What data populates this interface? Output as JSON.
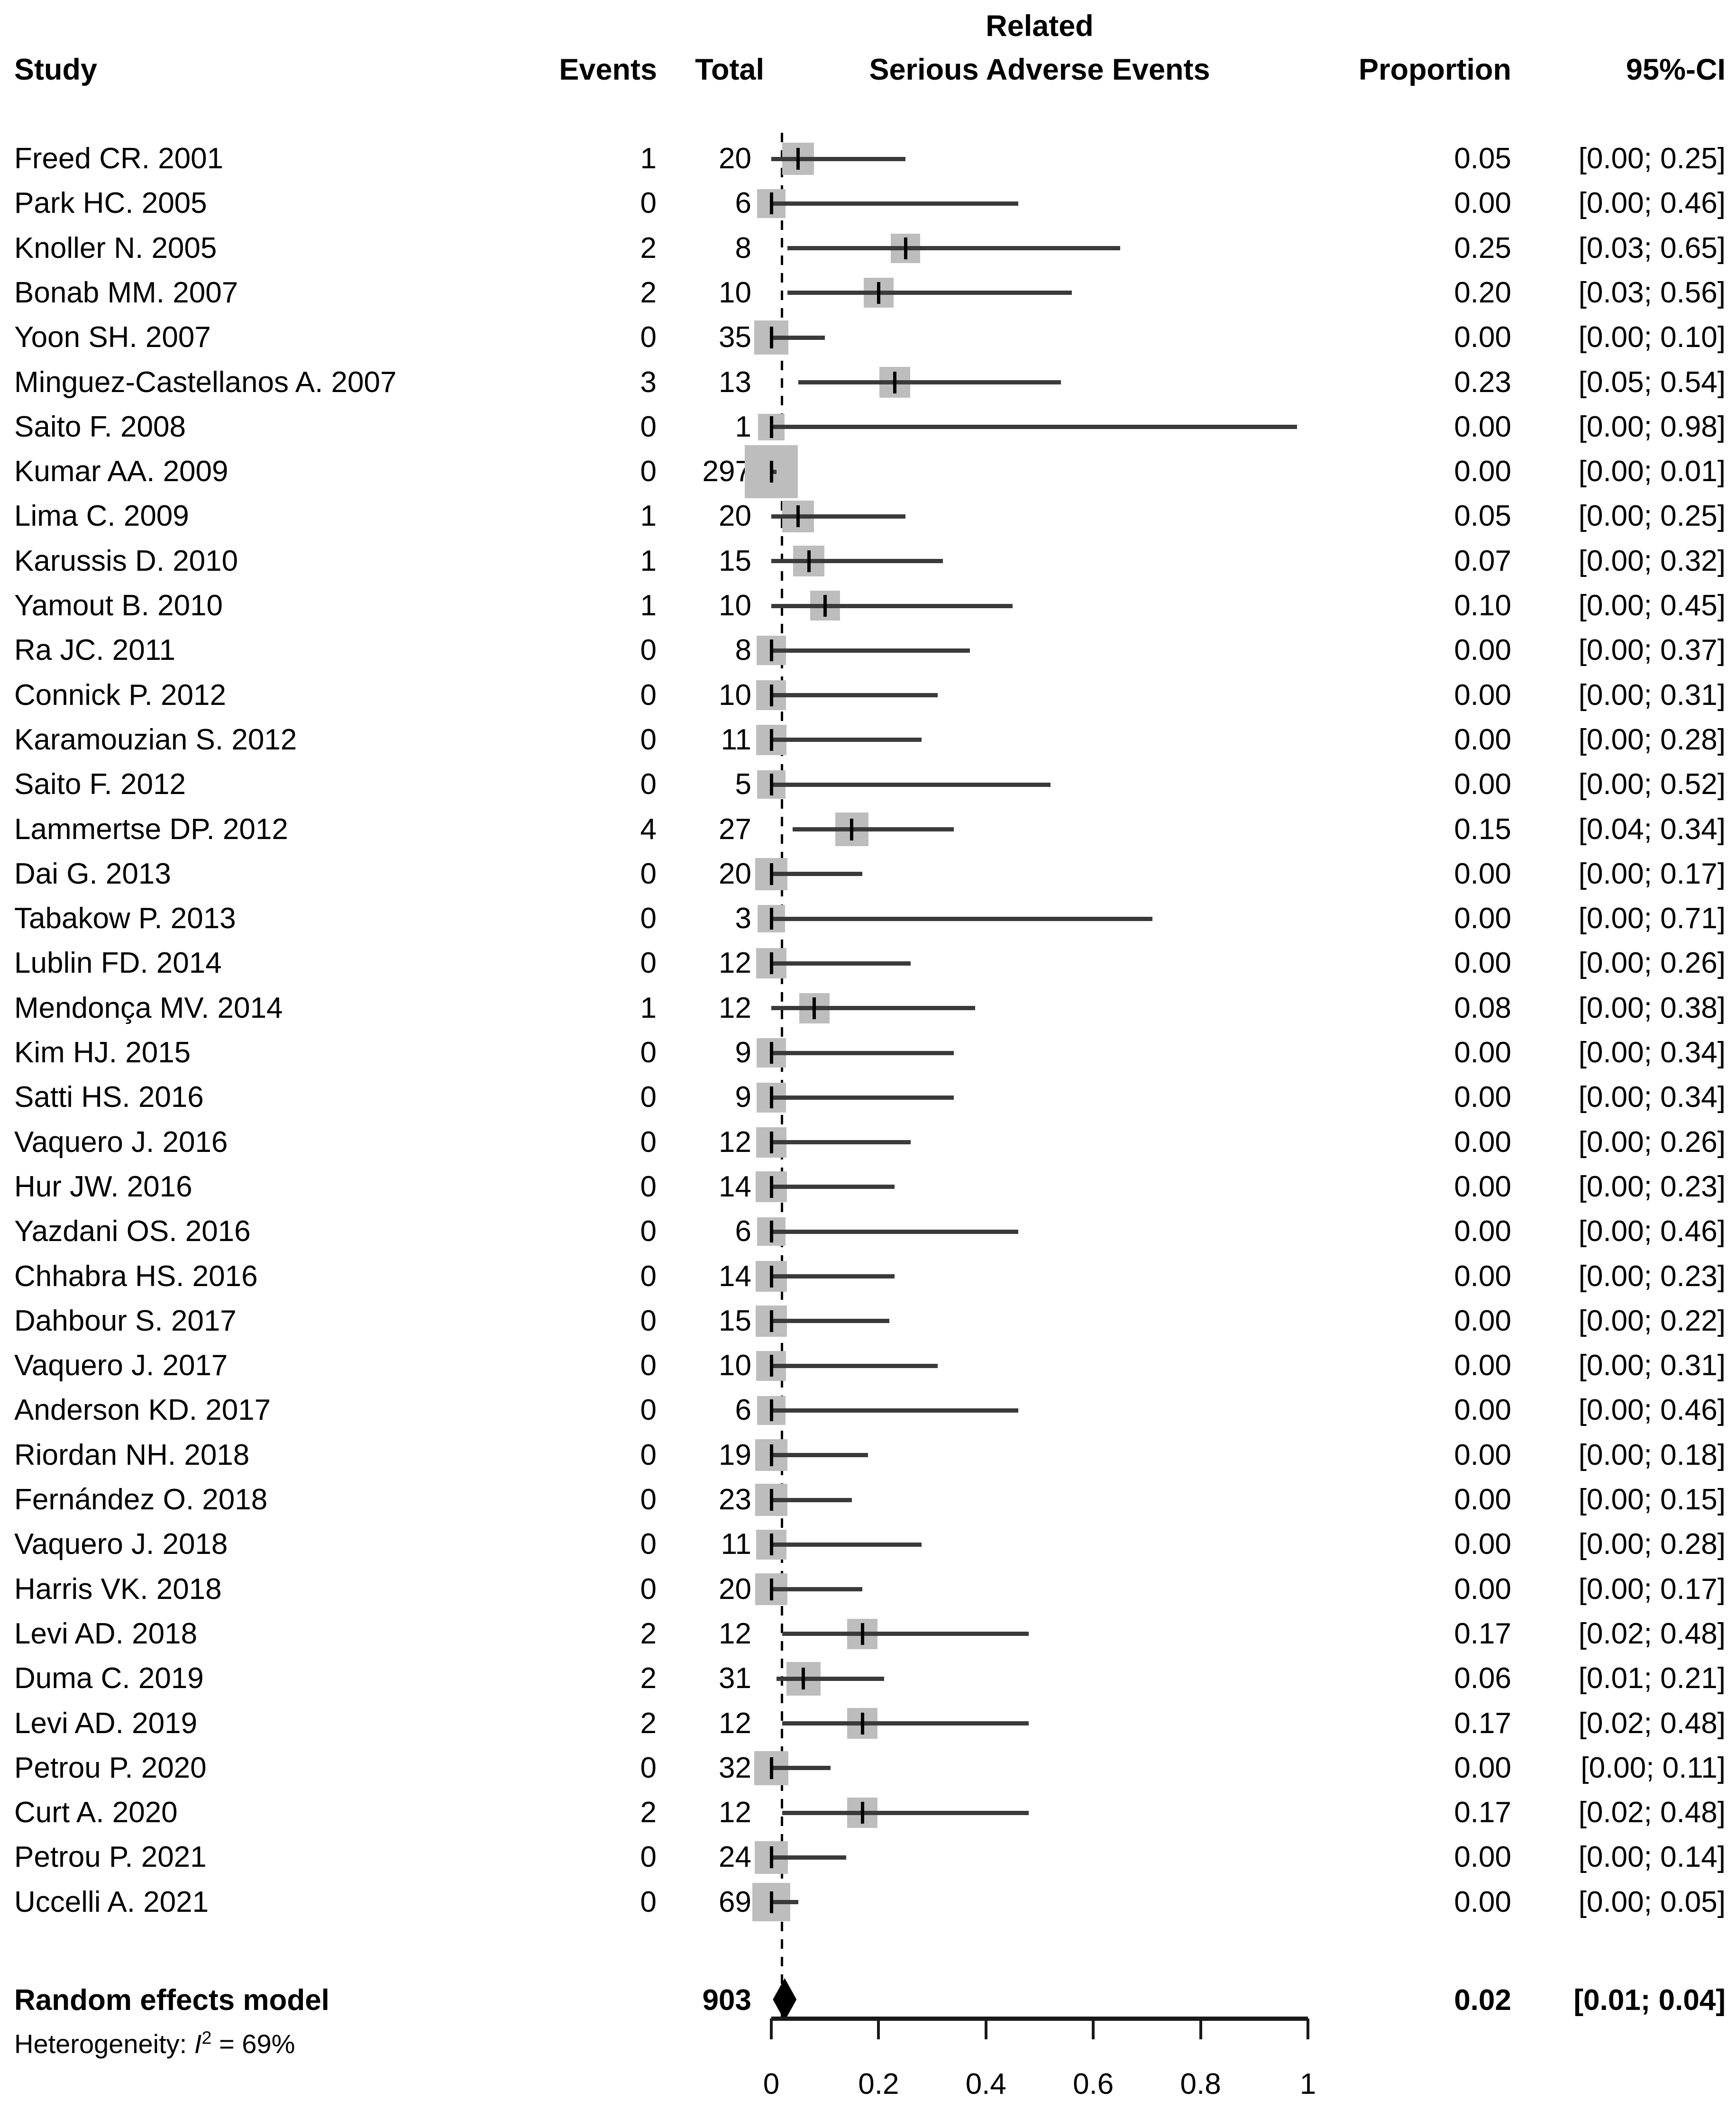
{
  "header": {
    "study": "Study",
    "events": "Events",
    "total": "Total",
    "plot_title_line1": "Related",
    "plot_title_line2": "Serious Adverse Events",
    "proportion": "Proportion",
    "ci": "95%-CI"
  },
  "chart_data": {
    "type": "forest",
    "title": "Related Serious Adverse Events",
    "axis": {
      "min": 0,
      "max": 1,
      "ticks": [
        0,
        0.2,
        0.4,
        0.6,
        0.8,
        1
      ],
      "tick_labels": [
        "0",
        "0.2",
        "0.4",
        "0.6",
        "0.8",
        "1"
      ]
    },
    "colors": {
      "square": "#bdbdbd",
      "ci_line": "#3a3a3a",
      "marker": "#000000",
      "diamond": "#000000",
      "dashed_line": "#000000",
      "axis": "#1a1a1a"
    },
    "studies": [
      {
        "study": "Freed CR. 2001",
        "events": "1",
        "total": "20",
        "proportion": "0.05",
        "ci": "[0.00; 0.25]",
        "est": 0.05,
        "lower": 0.0,
        "upper": 0.25,
        "n": 20
      },
      {
        "study": "Park HC. 2005",
        "events": "0",
        "total": "6",
        "proportion": "0.00",
        "ci": "[0.00; 0.46]",
        "est": 0.0,
        "lower": 0.0,
        "upper": 0.46,
        "n": 6
      },
      {
        "study": "Knoller N. 2005",
        "events": "2",
        "total": "8",
        "proportion": "0.25",
        "ci": "[0.03; 0.65]",
        "est": 0.25,
        "lower": 0.03,
        "upper": 0.65,
        "n": 8
      },
      {
        "study": "Bonab MM. 2007",
        "events": "2",
        "total": "10",
        "proportion": "0.20",
        "ci": "[0.03; 0.56]",
        "est": 0.2,
        "lower": 0.03,
        "upper": 0.56,
        "n": 10
      },
      {
        "study": "Yoon SH. 2007",
        "events": "0",
        "total": "35",
        "proportion": "0.00",
        "ci": "[0.00; 0.10]",
        "est": 0.0,
        "lower": 0.0,
        "upper": 0.1,
        "n": 35
      },
      {
        "study": "Minguez-Castellanos A. 2007",
        "events": "3",
        "total": "13",
        "proportion": "0.23",
        "ci": "[0.05; 0.54]",
        "est": 0.23,
        "lower": 0.05,
        "upper": 0.54,
        "n": 13
      },
      {
        "study": "Saito F. 2008",
        "events": "0",
        "total": "1",
        "proportion": "0.00",
        "ci": "[0.00; 0.98]",
        "est": 0.0,
        "lower": 0.0,
        "upper": 0.98,
        "n": 1
      },
      {
        "study": "Kumar AA. 2009",
        "events": "0",
        "total": "297",
        "proportion": "0.00",
        "ci": "[0.00; 0.01]",
        "est": 0.0,
        "lower": 0.0,
        "upper": 0.01,
        "n": 297
      },
      {
        "study": "Lima C. 2009",
        "events": "1",
        "total": "20",
        "proportion": "0.05",
        "ci": "[0.00; 0.25]",
        "est": 0.05,
        "lower": 0.0,
        "upper": 0.25,
        "n": 20
      },
      {
        "study": "Karussis D. 2010",
        "events": "1",
        "total": "15",
        "proportion": "0.07",
        "ci": "[0.00; 0.32]",
        "est": 0.07,
        "lower": 0.0,
        "upper": 0.32,
        "n": 15
      },
      {
        "study": "Yamout B. 2010",
        "events": "1",
        "total": "10",
        "proportion": "0.10",
        "ci": "[0.00; 0.45]",
        "est": 0.1,
        "lower": 0.0,
        "upper": 0.45,
        "n": 10
      },
      {
        "study": "Ra JC. 2011",
        "events": "0",
        "total": "8",
        "proportion": "0.00",
        "ci": "[0.00; 0.37]",
        "est": 0.0,
        "lower": 0.0,
        "upper": 0.37,
        "n": 8
      },
      {
        "study": "Connick P. 2012",
        "events": "0",
        "total": "10",
        "proportion": "0.00",
        "ci": "[0.00; 0.31]",
        "est": 0.0,
        "lower": 0.0,
        "upper": 0.31,
        "n": 10
      },
      {
        "study": "Karamouzian S. 2012",
        "events": "0",
        "total": "11",
        "proportion": "0.00",
        "ci": "[0.00; 0.28]",
        "est": 0.0,
        "lower": 0.0,
        "upper": 0.28,
        "n": 11
      },
      {
        "study": "Saito F. 2012",
        "events": "0",
        "total": "5",
        "proportion": "0.00",
        "ci": "[0.00; 0.52]",
        "est": 0.0,
        "lower": 0.0,
        "upper": 0.52,
        "n": 5
      },
      {
        "study": "Lammertse DP. 2012",
        "events": "4",
        "total": "27",
        "proportion": "0.15",
        "ci": "[0.04; 0.34]",
        "est": 0.15,
        "lower": 0.04,
        "upper": 0.34,
        "n": 27
      },
      {
        "study": "Dai G. 2013",
        "events": "0",
        "total": "20",
        "proportion": "0.00",
        "ci": "[0.00; 0.17]",
        "est": 0.0,
        "lower": 0.0,
        "upper": 0.17,
        "n": 20
      },
      {
        "study": "Tabakow P. 2013",
        "events": "0",
        "total": "3",
        "proportion": "0.00",
        "ci": "[0.00; 0.71]",
        "est": 0.0,
        "lower": 0.0,
        "upper": 0.71,
        "n": 3
      },
      {
        "study": "Lublin FD. 2014",
        "events": "0",
        "total": "12",
        "proportion": "0.00",
        "ci": "[0.00; 0.26]",
        "est": 0.0,
        "lower": 0.0,
        "upper": 0.26,
        "n": 12
      },
      {
        "study": "Mendonça MV. 2014",
        "events": "1",
        "total": "12",
        "proportion": "0.08",
        "ci": "[0.00; 0.38]",
        "est": 0.08,
        "lower": 0.0,
        "upper": 0.38,
        "n": 12
      },
      {
        "study": "Kim HJ. 2015",
        "events": "0",
        "total": "9",
        "proportion": "0.00",
        "ci": "[0.00; 0.34]",
        "est": 0.0,
        "lower": 0.0,
        "upper": 0.34,
        "n": 9
      },
      {
        "study": "Satti HS. 2016",
        "events": "0",
        "total": "9",
        "proportion": "0.00",
        "ci": "[0.00; 0.34]",
        "est": 0.0,
        "lower": 0.0,
        "upper": 0.34,
        "n": 9
      },
      {
        "study": "Vaquero J. 2016",
        "events": "0",
        "total": "12",
        "proportion": "0.00",
        "ci": "[0.00; 0.26]",
        "est": 0.0,
        "lower": 0.0,
        "upper": 0.26,
        "n": 12
      },
      {
        "study": "Hur JW. 2016",
        "events": "0",
        "total": "14",
        "proportion": "0.00",
        "ci": "[0.00; 0.23]",
        "est": 0.0,
        "lower": 0.0,
        "upper": 0.23,
        "n": 14
      },
      {
        "study": "Yazdani OS. 2016",
        "events": "0",
        "total": "6",
        "proportion": "0.00",
        "ci": "[0.00; 0.46]",
        "est": 0.0,
        "lower": 0.0,
        "upper": 0.46,
        "n": 6
      },
      {
        "study": "Chhabra HS. 2016",
        "events": "0",
        "total": "14",
        "proportion": "0.00",
        "ci": "[0.00; 0.23]",
        "est": 0.0,
        "lower": 0.0,
        "upper": 0.23,
        "n": 14
      },
      {
        "study": "Dahbour S. 2017",
        "events": "0",
        "total": "15",
        "proportion": "0.00",
        "ci": "[0.00; 0.22]",
        "est": 0.0,
        "lower": 0.0,
        "upper": 0.22,
        "n": 15
      },
      {
        "study": "Vaquero J. 2017",
        "events": "0",
        "total": "10",
        "proportion": "0.00",
        "ci": "[0.00; 0.31]",
        "est": 0.0,
        "lower": 0.0,
        "upper": 0.31,
        "n": 10
      },
      {
        "study": "Anderson KD. 2017",
        "events": "0",
        "total": "6",
        "proportion": "0.00",
        "ci": "[0.00; 0.46]",
        "est": 0.0,
        "lower": 0.0,
        "upper": 0.46,
        "n": 6
      },
      {
        "study": "Riordan NH. 2018",
        "events": "0",
        "total": "19",
        "proportion": "0.00",
        "ci": "[0.00; 0.18]",
        "est": 0.0,
        "lower": 0.0,
        "upper": 0.18,
        "n": 19
      },
      {
        "study": "Fernández O. 2018",
        "events": "0",
        "total": "23",
        "proportion": "0.00",
        "ci": "[0.00; 0.15]",
        "est": 0.0,
        "lower": 0.0,
        "upper": 0.15,
        "n": 23
      },
      {
        "study": "Vaquero J. 2018",
        "events": "0",
        "total": "11",
        "proportion": "0.00",
        "ci": "[0.00; 0.28]",
        "est": 0.0,
        "lower": 0.0,
        "upper": 0.28,
        "n": 11
      },
      {
        "study": "Harris VK. 2018",
        "events": "0",
        "total": "20",
        "proportion": "0.00",
        "ci": "[0.00; 0.17]",
        "est": 0.0,
        "lower": 0.0,
        "upper": 0.17,
        "n": 20
      },
      {
        "study": "Levi AD. 2018",
        "events": "2",
        "total": "12",
        "proportion": "0.17",
        "ci": "[0.02; 0.48]",
        "est": 0.17,
        "lower": 0.02,
        "upper": 0.48,
        "n": 12
      },
      {
        "study": "Duma C. 2019",
        "events": "2",
        "total": "31",
        "proportion": "0.06",
        "ci": "[0.01; 0.21]",
        "est": 0.06,
        "lower": 0.01,
        "upper": 0.21,
        "n": 31
      },
      {
        "study": "Levi AD. 2019",
        "events": "2",
        "total": "12",
        "proportion": "0.17",
        "ci": "[0.02; 0.48]",
        "est": 0.17,
        "lower": 0.02,
        "upper": 0.48,
        "n": 12
      },
      {
        "study": "Petrou P. 2020",
        "events": "0",
        "total": "32",
        "proportion": "0.00",
        "ci": "[0.00; 0.11]",
        "est": 0.0,
        "lower": 0.0,
        "upper": 0.11,
        "n": 32
      },
      {
        "study": "Curt A. 2020",
        "events": "2",
        "total": "12",
        "proportion": "0.17",
        "ci": "[0.02; 0.48]",
        "est": 0.17,
        "lower": 0.02,
        "upper": 0.48,
        "n": 12
      },
      {
        "study": "Petrou P. 2021",
        "events": "0",
        "total": "24",
        "proportion": "0.00",
        "ci": "[0.00; 0.14]",
        "est": 0.0,
        "lower": 0.0,
        "upper": 0.14,
        "n": 24
      },
      {
        "study": "Uccelli A. 2021",
        "events": "0",
        "total": "69",
        "proportion": "0.00",
        "ci": "[0.00; 0.05]",
        "est": 0.0,
        "lower": 0.0,
        "upper": 0.05,
        "n": 69
      }
    ],
    "summary": {
      "label": "Random effects model",
      "total": "903",
      "proportion": "0.02",
      "ci": "[0.01; 0.04]",
      "est": 0.02,
      "lower": 0.01,
      "upper": 0.04
    },
    "heterogeneity": {
      "prefix": "Heterogeneity: ",
      "stat": "I",
      "sup": "2",
      "rest": " = 69%"
    }
  }
}
